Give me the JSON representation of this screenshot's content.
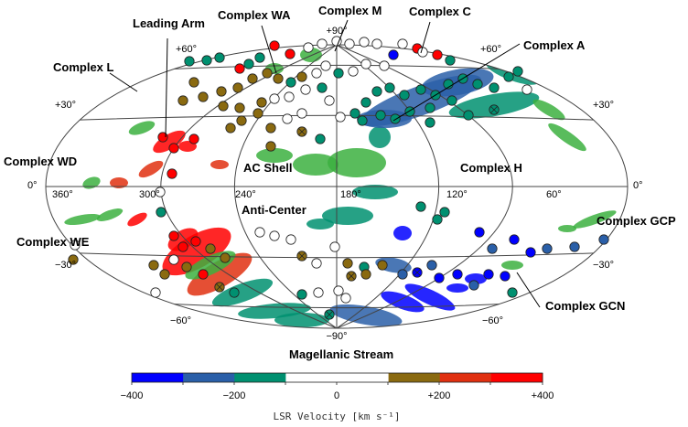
{
  "complexes": {
    "leading_arm": "Leading Arm",
    "complex_wa": "Complex WA",
    "complex_m": "Complex M",
    "complex_c": "Complex C",
    "complex_a": "Complex A",
    "complex_l": "Complex L",
    "complex_wd": "Complex WD",
    "ac_shell": "AC Shell",
    "complex_h": "Complex H",
    "anti_center": "Anti-Center",
    "complex_we": "Complex WE",
    "complex_gcp": "Complex GCP",
    "complex_gcn": "Complex GCN",
    "magellanic_stream": "Magellanic Stream"
  },
  "grid_labels": {
    "lat_p90": "+90°",
    "lat_p60_left": "+60°",
    "lat_p60_right": "+60°",
    "lat_p30_left": "+30°",
    "lat_p30_right": "+30°",
    "lat_0_left": "0°",
    "lat_0_right": "0°",
    "lat_m30_left": "−30°",
    "lat_m30_right": "−30°",
    "lat_m60_left": "−60°",
    "lat_m60_right": "−60°",
    "lat_m90": "−90°",
    "lon_360": "360°",
    "lon_300": "300°",
    "lon_240": "240°",
    "lon_180": "180°",
    "lon_120": "120°",
    "lon_60": "60°"
  },
  "colorbar": {
    "title": "LSR Velocity [km s⁻¹]",
    "ticks": [
      "−400",
      "−200",
      "0",
      "+200",
      "+400"
    ],
    "colors": [
      "#0000ff",
      "#2a5fa8",
      "#009070",
      "#ffffff",
      "#ffffff",
      "#8a6a10",
      "#e03010",
      "#ff0000"
    ],
    "range": [
      -400,
      400
    ]
  },
  "velocity_colors": {
    "blue": "#0000ff",
    "steel": "#2a5fa8",
    "teal": "#009070",
    "green": "#3cb040",
    "white": "#ffffff",
    "olive": "#8a6a10",
    "orange": "#e03010",
    "red": "#ff0000"
  },
  "map_info": {
    "projection": "Hammer-Aitoff, galactic coordinates",
    "center_longitude": 180,
    "longitude_direction": "increasing to the left"
  }
}
